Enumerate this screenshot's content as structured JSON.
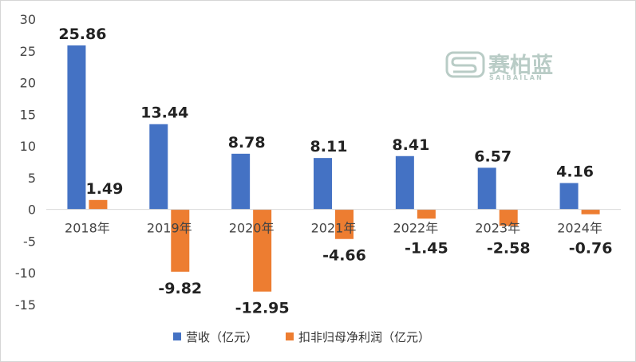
{
  "chart_data": {
    "type": "bar",
    "categories": [
      "2018年",
      "2019年",
      "2020年",
      "2021年",
      "2022年",
      "2023年",
      "2024年"
    ],
    "series": [
      {
        "name": "营收（亿元）",
        "color": "#4472c4",
        "values": [
          25.86,
          13.44,
          8.78,
          8.11,
          8.41,
          6.57,
          4.16
        ],
        "labels": [
          "25.86",
          "13.44",
          "8.78",
          "8.11",
          "8.41",
          "6.57",
          "4.16"
        ]
      },
      {
        "name": "扣非归母净利润（亿元）",
        "color": "#ed7d31",
        "values": [
          1.49,
          -9.82,
          -12.95,
          -4.66,
          -1.45,
          -2.58,
          -0.76
        ],
        "labels": [
          "1.49",
          "-9.82",
          "-12.95",
          "-4.66",
          "-1.45",
          "-2.58",
          "-0.76"
        ]
      }
    ],
    "ylim": [
      -15,
      30
    ],
    "yticks": [
      "-15",
      "-10",
      "-5",
      "0",
      "5",
      "10",
      "15",
      "20",
      "25",
      "30"
    ],
    "grid": false,
    "legend_position": "bottom"
  },
  "watermark": {
    "text_cn": "赛柏蓝",
    "text_en": "SAIBAILAN",
    "color": "#b9ccc6"
  }
}
